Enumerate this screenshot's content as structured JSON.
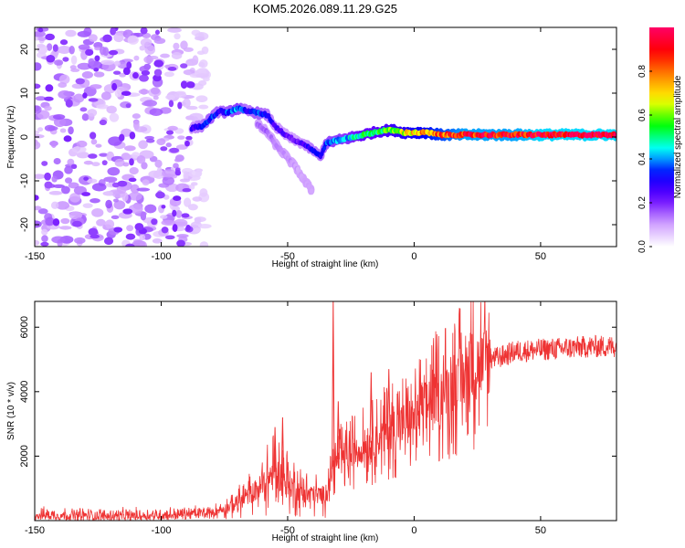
{
  "title": "KOM5.2026.089.11.29.G25",
  "chart_data": [
    {
      "type": "heatmap",
      "name": "spectrogram",
      "xlabel": "Height of straight line (km)",
      "ylabel": "Frequency (Hz)",
      "xlim": [
        -150,
        80
      ],
      "ylim": [
        -25,
        25
      ],
      "xticks": [
        -150,
        -100,
        -50,
        0,
        50
      ],
      "xtick_labels": [
        "-150",
        "-100",
        "-50",
        "0",
        "50"
      ],
      "yticks": [
        -20,
        -10,
        0,
        10,
        20
      ],
      "ytick_labels": [
        "-20",
        "-10",
        "0",
        "10",
        "20"
      ],
      "ridge": {
        "x": [
          -88,
          -84,
          -80,
          -77,
          -74,
          -70,
          -66,
          -62,
          -58,
          -55,
          -52,
          -48,
          -44,
          -40,
          -37,
          -35,
          -32,
          -28,
          -24,
          -20,
          -16,
          -12,
          -8,
          -4,
          0,
          5,
          10,
          15,
          20,
          30,
          40,
          50,
          60,
          70,
          80
        ],
        "freq": [
          2.0,
          2.5,
          4.5,
          6.0,
          5.5,
          6.5,
          6.0,
          5.5,
          5.0,
          2.5,
          1.0,
          -0.5,
          -1.5,
          -3.0,
          -4.5,
          -1.5,
          -1.0,
          -0.5,
          0.0,
          0.5,
          1.0,
          1.5,
          1.5,
          1.0,
          1.0,
          1.0,
          0.5,
          0.5,
          0.5,
          0.5,
          0.5,
          0.5,
          0.5,
          0.5,
          0.5
        ],
        "amp": [
          0.25,
          0.3,
          0.35,
          0.3,
          0.35,
          0.4,
          0.3,
          0.35,
          0.3,
          0.25,
          0.25,
          0.2,
          0.25,
          0.3,
          0.3,
          0.35,
          0.4,
          0.4,
          0.45,
          0.5,
          0.5,
          0.55,
          0.6,
          0.65,
          0.7,
          0.75,
          0.8,
          0.85,
          0.9,
          0.9,
          0.9,
          0.95,
          0.95,
          0.95,
          0.95
        ]
      },
      "branch": {
        "x": [
          -62,
          -58,
          -55,
          -52,
          -49,
          -46,
          -44,
          -42,
          -40
        ],
        "freq": [
          3.0,
          1.0,
          -1.5,
          -3.5,
          -5.5,
          -7.5,
          -9.5,
          -11.0,
          -12.5
        ],
        "amp": [
          0.15,
          0.15,
          0.12,
          0.12,
          0.12,
          0.1,
          0.1,
          0.1,
          0.1
        ]
      },
      "noise_region": {
        "x_from": -150,
        "x_to": -88,
        "amp_max": 0.12
      },
      "colorbar": {
        "label": "Normalized spectral amplitude",
        "range": [
          0,
          1
        ],
        "ticks": [
          0.0,
          0.2,
          0.4,
          0.6,
          0.8
        ],
        "tick_labels": [
          "0.0",
          "0.2",
          "0.4",
          "0.6",
          "0.8"
        ],
        "colors": [
          "#ffffff",
          "#cc99ff",
          "#6600ff",
          "#0000ff",
          "#00ffff",
          "#00ff00",
          "#ffff00",
          "#ff8800",
          "#ff0000",
          "#ff0066"
        ]
      }
    },
    {
      "type": "line",
      "name": "snr",
      "xlabel": "Height of straight line (km)",
      "ylabel": "SNR (10 * v/v)",
      "xlim": [
        -150,
        80
      ],
      "ylim": [
        0,
        6800
      ],
      "xticks": [
        -150,
        -100,
        -50,
        0,
        50
      ],
      "xtick_labels": [
        "-150",
        "-100",
        "-50",
        "0",
        "50"
      ],
      "yticks": [
        2000,
        4000,
        6000
      ],
      "ytick_labels": [
        "2000",
        "4000",
        "6000"
      ],
      "color": "#ee3333",
      "x": [
        -150,
        -140,
        -130,
        -120,
        -110,
        -100,
        -90,
        -80,
        -75,
        -70,
        -65,
        -60,
        -55,
        -50,
        -45,
        -40,
        -35,
        -32,
        -30,
        -25,
        -20,
        -15,
        -10,
        -5,
        0,
        5,
        10,
        15,
        20,
        25,
        30,
        35,
        40,
        50,
        60,
        70,
        80
      ],
      "snr": [
        180,
        170,
        160,
        150,
        160,
        170,
        200,
        260,
        380,
        550,
        800,
        1100,
        1500,
        1200,
        900,
        800,
        800,
        1600,
        1900,
        2100,
        2300,
        2500,
        2800,
        3000,
        3200,
        3600,
        3900,
        4200,
        4500,
        4800,
        5000,
        5100,
        5250,
        5300,
        5350,
        5400,
        5400
      ],
      "spikes": [
        {
          "x": -52,
          "snr": 3200
        },
        {
          "x": -55,
          "snr": 2900
        },
        {
          "x": -32,
          "snr": 6800
        },
        {
          "x": -30,
          "snr": 3700
        },
        {
          "x": -17,
          "snr": 4600
        },
        {
          "x": -10,
          "snr": 4700
        }
      ]
    }
  ]
}
